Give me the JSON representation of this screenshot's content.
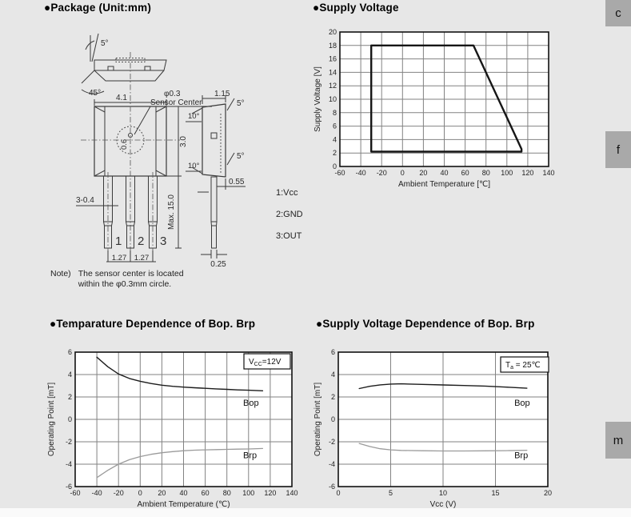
{
  "page": {
    "background": "#e7e7e7",
    "tab_color": "#a9a9a9"
  },
  "side_tabs": [
    {
      "label": "c"
    },
    {
      "label": "f"
    },
    {
      "label": "m"
    }
  ],
  "package": {
    "heading": "●Package (Unit:mm)",
    "note": {
      "label": "Note)",
      "line1": "The sensor center is located",
      "line2": "within the φ0.3mm circle."
    },
    "pins": [
      "1:Vcc",
      "2:GND",
      "3:OUT"
    ],
    "dims": {
      "body_width": "4.1",
      "body_height": "3.0",
      "lead_length": "Max. 15.0",
      "lead_pitch": "1.27",
      "lead_width": "3-0.4",
      "side_width": "1.15",
      "side_offset": "0.55",
      "lead_tip_width": "0.25",
      "sensor_dia": "φ0.3",
      "sensor_label": "Sensor Center",
      "sensor_inner": "0.6",
      "angle_5": "5°",
      "angle_10": "10°",
      "angle_45": "45°",
      "lead_numbers": [
        "1",
        "2",
        "3"
      ]
    }
  },
  "chart_data": [
    {
      "type": "line",
      "heading": "●Supply Voltage",
      "title": "Supply Voltage",
      "xlabel": "Ambient Temperature [℃]",
      "ylabel": "Supply Voltage [V]",
      "xlim": [
        -60,
        140
      ],
      "xstep": 20,
      "ylim": [
        0,
        20
      ],
      "ystep": 2,
      "grid": true,
      "series": [
        {
          "name": "operating-area",
          "color": "#161616",
          "width": 2.4,
          "x": [
            -30,
            -30,
            68,
            114,
            114,
            -30
          ],
          "y": [
            2.2,
            18,
            18,
            2.6,
            2.2,
            2.2
          ]
        }
      ]
    },
    {
      "type": "line",
      "heading": "●Temparature Dependence of Bop. Brp",
      "title": "Temparature Dependence of Bop. Brp",
      "xlabel": "Ambient Temperature (℃)",
      "ylabel": "Operating Point [mT]",
      "xlim": [
        -60,
        140
      ],
      "xstep": 20,
      "ylim": [
        -6,
        6
      ],
      "ystep": 2,
      "grid": true,
      "legend": {
        "pre": "V",
        "sub": "CC",
        "post": "=12V"
      },
      "series": [
        {
          "name": "Bop",
          "label": "Bop",
          "label_at": [
            95,
            1.2
          ],
          "color": "#1c1c1c",
          "width": 1.4,
          "x": [
            -40,
            -30,
            -20,
            -10,
            0,
            10,
            20,
            30,
            40,
            50,
            60,
            70,
            80,
            90,
            100,
            113
          ],
          "y": [
            5.55,
            4.7,
            4.05,
            3.65,
            3.4,
            3.2,
            3.05,
            2.95,
            2.88,
            2.82,
            2.77,
            2.72,
            2.68,
            2.63,
            2.6,
            2.55
          ]
        },
        {
          "name": "Brp",
          "label": "Brp",
          "label_at": [
            95,
            -3.45
          ],
          "color": "#9b9b9b",
          "width": 1.3,
          "x": [
            -40,
            -30,
            -20,
            -10,
            0,
            10,
            20,
            30,
            40,
            50,
            60,
            70,
            80,
            90,
            100,
            113
          ],
          "y": [
            -5.2,
            -4.55,
            -4.0,
            -3.6,
            -3.32,
            -3.12,
            -2.98,
            -2.88,
            -2.8,
            -2.75,
            -2.72,
            -2.7,
            -2.68,
            -2.66,
            -2.64,
            -2.6
          ]
        }
      ]
    },
    {
      "type": "line",
      "heading": "●Supply Voltage Dependence of Bop. Brp",
      "title": "Supply Voltage Dependence of Bop. Brp",
      "xlabel": "Vcc (V)",
      "ylabel": "Operating Point [mT]",
      "xlim": [
        0,
        20
      ],
      "xstep": 5,
      "ylim": [
        -6,
        6
      ],
      "ystep": 2,
      "grid": true,
      "legend": {
        "pre": "T",
        "sub": "a",
        "post": " = 25℃"
      },
      "series": [
        {
          "name": "Bop",
          "label": "Bop",
          "label_at": [
            16.8,
            1.2
          ],
          "color": "#1c1c1c",
          "width": 1.4,
          "x": [
            2,
            3,
            4,
            5,
            6,
            8,
            10,
            12,
            14,
            16,
            18
          ],
          "y": [
            2.75,
            2.95,
            3.08,
            3.15,
            3.17,
            3.12,
            3.07,
            3.02,
            2.97,
            2.88,
            2.78
          ]
        },
        {
          "name": "Brp",
          "label": "Brp",
          "label_at": [
            16.8,
            -3.45
          ],
          "color": "#9b9b9b",
          "width": 1.3,
          "x": [
            2,
            3,
            4,
            5,
            6,
            8,
            10,
            12,
            14,
            16,
            18
          ],
          "y": [
            -2.15,
            -2.42,
            -2.62,
            -2.72,
            -2.77,
            -2.8,
            -2.82,
            -2.82,
            -2.81,
            -2.79,
            -2.76
          ]
        }
      ]
    }
  ]
}
